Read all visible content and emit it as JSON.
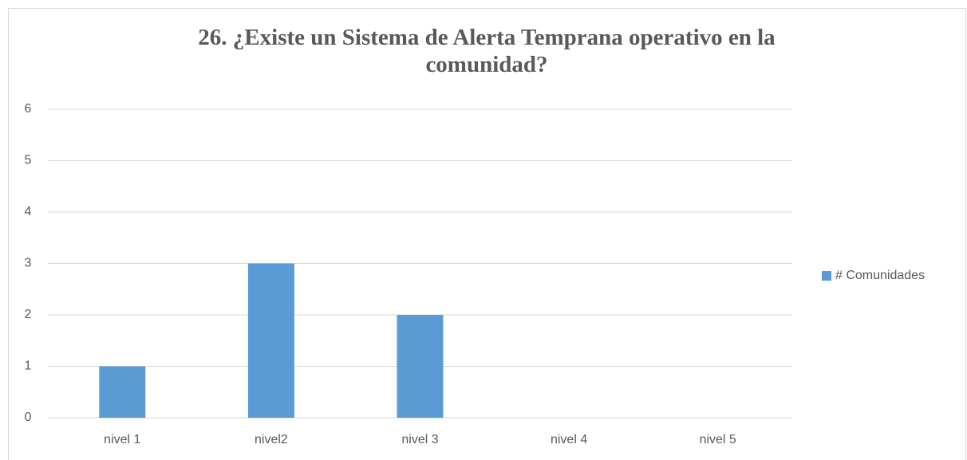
{
  "chart_data": {
    "type": "bar",
    "title": "26. ¿Existe un Sistema de Alerta Temprana operativo en la comunidad?",
    "categories": [
      "nivel 1",
      "nivel2",
      "nivel 3",
      "nivel 4",
      "nivel 5"
    ],
    "series": [
      {
        "name": "# Comunidades",
        "color": "#5b9bd5",
        "values": [
          1,
          3,
          2,
          0,
          0
        ]
      }
    ],
    "ylim": [
      0,
      6
    ],
    "yticks": [
      0,
      1,
      2,
      3,
      4,
      5,
      6
    ],
    "grid": true,
    "legend": "right"
  }
}
